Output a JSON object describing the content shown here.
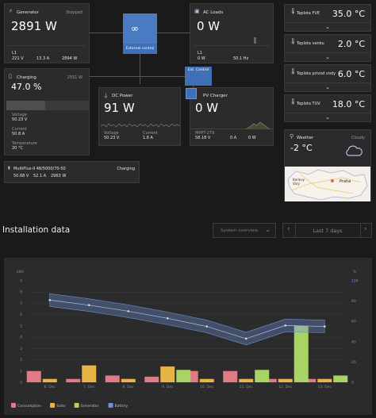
{
  "generator": {
    "title": "Generator",
    "status": "Stopped",
    "power": "2891 W",
    "phase": "L1",
    "voltage": "221 V",
    "current": "13.3 A",
    "power_small": "2894 W"
  },
  "ac_loads": {
    "title": "AC Loads",
    "power": "0 W",
    "phase": "L1",
    "power_small": "0 W",
    "freq": "50.1 Hz"
  },
  "inverter": {
    "label": "External control"
  },
  "battery": {
    "title": "Charging",
    "power": "2551 W",
    "soc": "47.0 %",
    "voltage_label": "Voltage",
    "voltage": "50.23 V",
    "current_label": "Current",
    "current": "50.8 A",
    "temp_label": "Temperature",
    "temp": "20 °C",
    "fill_fraction": 0.47
  },
  "dc_power": {
    "title": "DC Power",
    "power": "91 W",
    "voltage_label": "Voltage",
    "voltage": "50.23 V",
    "current_label": "Current",
    "current": "1.8 A"
  },
  "pv_charger": {
    "title": "PV Charger",
    "power": "0 W",
    "ext_control": "Ext. Control",
    "device": "MPPT-279",
    "voltage": "58.18 V",
    "current": "0 A",
    "power_small": "0 W"
  },
  "multiplus": {
    "title": "MultiPlus-II 48/5000/70-50",
    "status": "Charging",
    "voltage": "50.68 V",
    "current": "52.1 A",
    "power": "2963 W"
  },
  "temps": [
    {
      "label": "Teplota FVE",
      "value": "35.0 °C"
    },
    {
      "label": "Teplota venku",
      "value": "2.0 °C"
    },
    {
      "label": "Teplota privod vody",
      "value": "6.0 °C"
    },
    {
      "label": "Teplota TUV",
      "value": "18.0 °C"
    }
  ],
  "weather": {
    "label": "Weather",
    "value": "-2 °C",
    "condition": "Cloudy",
    "map_place1": "Karlovy Vary",
    "map_place2": "Praha"
  },
  "installation": {
    "title": "Installation data",
    "select": "System overview",
    "range": "Last 7 days"
  },
  "icons": {
    "generator": "generator-icon",
    "loads": "outlet-icon",
    "battery": "battery-icon",
    "dc": "plug-icon",
    "pv": "solar-panel-icon",
    "inverter": "inverter-icon",
    "temp": "thermometer-icon",
    "weather": "location-pin-icon",
    "cloud": "cloud-icon"
  },
  "colors": {
    "consumption": "#e07b86",
    "solar": "#e8b446",
    "generator": "#a9d465",
    "battery": "#6f8fd6",
    "accent": "#3f6fb5"
  },
  "chart_data": {
    "type": "bar",
    "categories": [
      "6. Dec",
      "7. Dec",
      "8. Dec",
      "9. Dec",
      "10. Dec",
      "11. Dec",
      "12. Dec",
      "13. Dec"
    ],
    "ylim": [
      0,
      9
    ],
    "yticks": [
      "0",
      "1",
      "2",
      "3",
      "4",
      "5",
      "6",
      "7",
      "8",
      "9"
    ],
    "yunit": "kWh",
    "y2lim": [
      0,
      100
    ],
    "y2ticks": [
      "0",
      "20",
      "40",
      "60",
      "80",
      "100"
    ],
    "y2unit": "%",
    "series": [
      {
        "name": "Consumption",
        "values": [
          1.0,
          0.3,
          0.6,
          0.5,
          1.0,
          1.0,
          0.3,
          0.3
        ]
      },
      {
        "name": "Solar",
        "values": [
          0.3,
          1.5,
          0.3,
          1.4,
          0.3,
          0.3,
          0.3,
          0.3
        ]
      },
      {
        "name": "Generator",
        "values": [
          0,
          0,
          0,
          1.1,
          0,
          1.1,
          5.0,
          0.6
        ]
      },
      {
        "name": "Battery",
        "values": [
          81,
          76,
          70,
          63,
          55,
          43,
          56,
          55
        ]
      }
    ]
  }
}
